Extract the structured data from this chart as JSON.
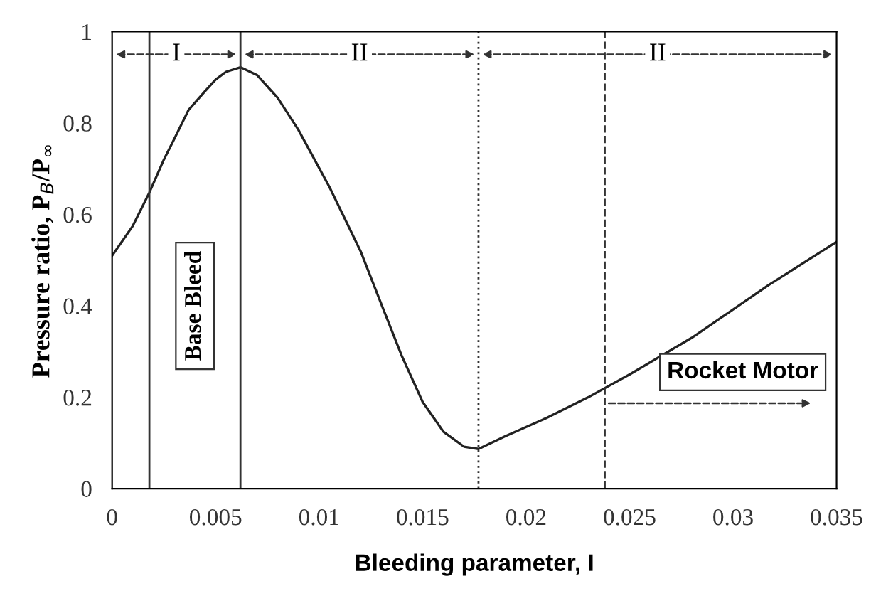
{
  "chart_data": {
    "type": "line",
    "xlabel": "Bleeding parameter, I",
    "ylabel": "Pressure ratio, P$_{B}$/P$_{∞}$",
    "series": [
      {
        "color": "#222222",
        "x": [
          0,
          0.001,
          0.0018,
          0.0025,
          0.003,
          0.0037,
          0.0045,
          0.005,
          0.0055,
          0.0062,
          0.007,
          0.008,
          0.009,
          0.0105,
          0.012,
          0.0131,
          0.014,
          0.015,
          0.016,
          0.017,
          0.0177,
          0.019,
          0.021,
          0.023,
          0.025,
          0.028,
          0.0317,
          0.035
        ],
        "values": [
          0.51,
          0.575,
          0.648,
          0.72,
          0.765,
          0.829,
          0.87,
          0.895,
          0.912,
          0.922,
          0.905,
          0.855,
          0.785,
          0.66,
          0.52,
          0.393,
          0.29,
          0.19,
          0.125,
          0.092,
          0.087,
          0.115,
          0.155,
          0.2,
          0.25,
          0.33,
          0.445,
          0.54
        ]
      }
    ],
    "xlim": [
      0,
      0.035
    ],
    "ylim": [
      0,
      1
    ],
    "xticks": [
      0,
      0.005,
      0.01,
      0.015,
      0.02,
      0.025,
      0.03,
      0.035
    ],
    "yticks": [
      0,
      0.2,
      0.4,
      0.6,
      0.8,
      1
    ],
    "ref_lines": [
      {
        "axis": "x",
        "value": 0.0018,
        "color": "#333333",
        "line_style": "solid"
      },
      {
        "axis": "x",
        "value": 0.0062,
        "color": "#333333",
        "line_style": "solid"
      },
      {
        "axis": "x",
        "value": 0.0177,
        "color": "#333333",
        "line_style": "dotted"
      },
      {
        "axis": "x",
        "value": 0.0238,
        "color": "#333333",
        "line_style": "dashed"
      }
    ],
    "annotations": [
      "I",
      "II",
      "II",
      "Base Bleed",
      "Rocket Motor"
    ],
    "grid": false,
    "legend": false
  }
}
